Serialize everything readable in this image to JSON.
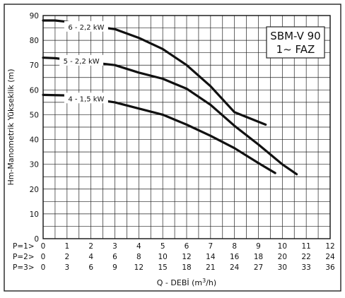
{
  "chart_data": {
    "type": "line",
    "title_lines": [
      "SBM-V 90",
      "1~ FAZ"
    ],
    "ylabel": "Hm-Manometrik Yükseklik (m)",
    "xlabel": "Q - DEBİ (m³/h)",
    "xlim": [
      0,
      12
    ],
    "ylim": [
      0,
      90
    ],
    "y_ticks": [
      "0",
      "10",
      "20",
      "30",
      "40",
      "50",
      "60",
      "70",
      "80",
      "90"
    ],
    "x_scales": [
      {
        "label": "P=1>",
        "ticks": [
          "0",
          "1",
          "2",
          "3",
          "4",
          "5",
          "6",
          "7",
          "8",
          "9",
          "10",
          "11",
          "12"
        ]
      },
      {
        "label": "P=2>",
        "ticks": [
          "0",
          "2",
          "4",
          "6",
          "8",
          "10",
          "12",
          "14",
          "16",
          "18",
          "20",
          "22",
          "24"
        ]
      },
      {
        "label": "P=3>",
        "ticks": [
          "0",
          "3",
          "6",
          "9",
          "12",
          "15",
          "18",
          "21",
          "24",
          "27",
          "30",
          "33",
          "36"
        ]
      }
    ],
    "grid": true,
    "series": [
      {
        "name": "6 - 2,2 kW",
        "points": [
          [
            0,
            88
          ],
          [
            0.5,
            88
          ],
          [
            1,
            87.5
          ],
          [
            1.5,
            86.5
          ],
          [
            3,
            84.5
          ],
          [
            4,
            81
          ],
          [
            5,
            76.5
          ],
          [
            6,
            70
          ],
          [
            7,
            61.5
          ],
          [
            8,
            51
          ],
          [
            9.3,
            46
          ]
        ]
      },
      {
        "name": "5 - 2,2 kW",
        "points": [
          [
            0,
            73
          ],
          [
            0.5,
            72.8
          ],
          [
            3,
            70
          ],
          [
            4,
            67
          ],
          [
            5,
            64.5
          ],
          [
            5.5,
            62.5
          ],
          [
            6,
            60.5
          ],
          [
            7,
            54
          ],
          [
            8,
            45.5
          ],
          [
            9,
            38
          ],
          [
            10,
            30
          ],
          [
            10.6,
            26
          ]
        ]
      },
      {
        "name": "4 - 1,5 kW",
        "points": [
          [
            0,
            58
          ],
          [
            1,
            57.8
          ],
          [
            3,
            55
          ],
          [
            4,
            52.5
          ],
          [
            5,
            50
          ],
          [
            6,
            46
          ],
          [
            7,
            41.5
          ],
          [
            8,
            36.5
          ],
          [
            9,
            30.5
          ],
          [
            9.7,
            26.5
          ]
        ]
      }
    ]
  }
}
